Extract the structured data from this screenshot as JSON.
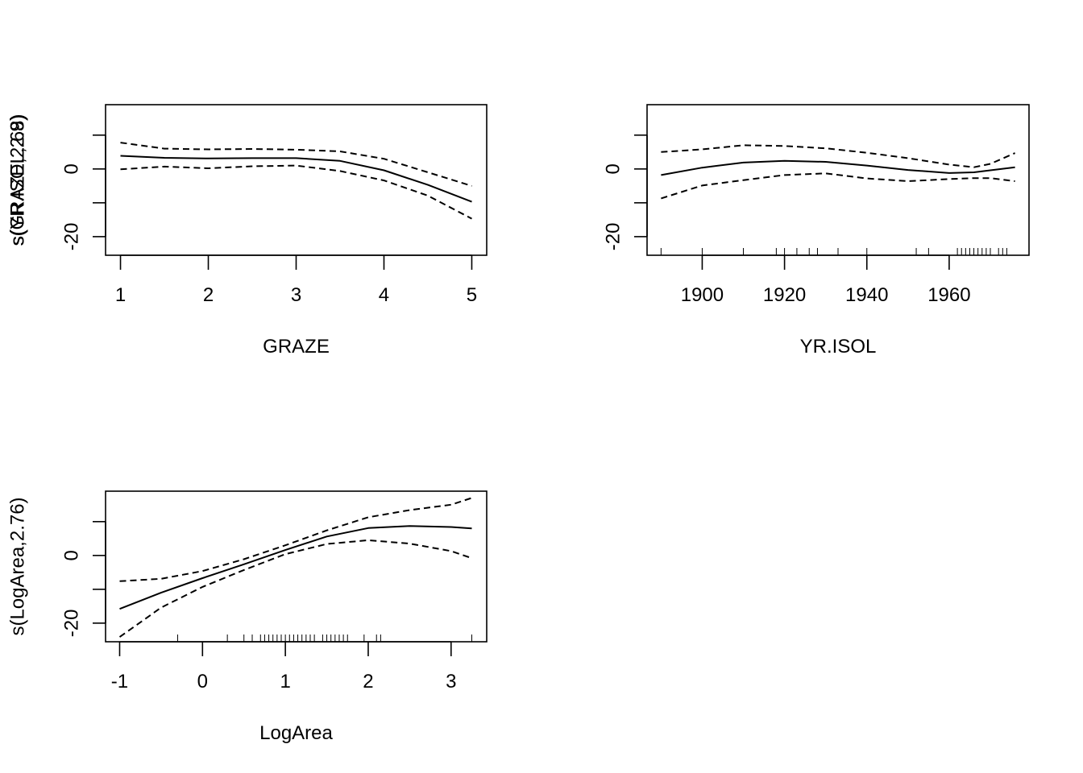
{
  "chart_data": [
    {
      "type": "line",
      "xlabel": "GRAZE",
      "ylabel": "s(GRAZE,2.68)",
      "xlim": [
        0.83,
        5.17
      ],
      "ylim": [
        -25.5,
        19
      ],
      "x_ticks": [
        1,
        2,
        3,
        4,
        5
      ],
      "x_tick_labels": [
        "1",
        "2",
        "3",
        "4",
        "5"
      ],
      "y_ticks": [
        -20,
        -10,
        0,
        10
      ],
      "y_tick_labels": [
        "-20",
        "",
        "0",
        ""
      ],
      "rug": [],
      "series": [
        {
          "role": "fit",
          "style": "solid",
          "x": [
            1,
            1.5,
            2,
            2.5,
            3,
            3.5,
            4,
            4.5,
            5
          ],
          "y": [
            3.9,
            3.3,
            3.1,
            3.2,
            3.2,
            2.4,
            -0.4,
            -4.7,
            -9.7
          ]
        },
        {
          "role": "upper",
          "style": "dashed",
          "x": [
            1,
            1.5,
            2,
            2.5,
            3,
            3.5,
            4,
            4.5,
            5
          ],
          "y": [
            7.8,
            6.0,
            5.8,
            5.9,
            5.7,
            5.2,
            3.0,
            -1.0,
            -5.0
          ]
        },
        {
          "role": "lower",
          "style": "dashed",
          "x": [
            1,
            1.5,
            2,
            2.5,
            3,
            3.5,
            4,
            4.5,
            5
          ],
          "y": [
            -0.1,
            0.7,
            0.2,
            0.8,
            1.0,
            -0.6,
            -3.4,
            -7.9,
            -14.7
          ]
        }
      ]
    },
    {
      "type": "line",
      "xlabel": "YR.ISOL",
      "ylabel": "s(YR.ISOL,2.9)",
      "xlim": [
        1886.6,
        1979.4
      ],
      "ylim": [
        -25.5,
        19
      ],
      "x_ticks": [
        1900,
        1920,
        1940,
        1960
      ],
      "x_tick_labels": [
        "1900",
        "1920",
        "1940",
        "1960"
      ],
      "y_ticks": [
        -20,
        -10,
        0,
        10
      ],
      "y_tick_labels": [
        "-20",
        "",
        "0",
        ""
      ],
      "rug": [
        1890,
        1900,
        1910,
        1918,
        1920,
        1923,
        1926,
        1928,
        1933,
        1940,
        1952,
        1955,
        1962,
        1963,
        1964,
        1965,
        1966,
        1967,
        1968,
        1969,
        1970,
        1972,
        1973,
        1974
      ],
      "series": [
        {
          "role": "fit",
          "style": "solid",
          "x": [
            1890,
            1900,
            1910,
            1920,
            1930,
            1940,
            1950,
            1960,
            1966,
            1970,
            1976
          ],
          "y": [
            -1.8,
            0.4,
            1.9,
            2.4,
            2.1,
            1.0,
            -0.3,
            -1.2,
            -1.0,
            -0.4,
            0.5
          ]
        },
        {
          "role": "upper",
          "style": "dashed",
          "x": [
            1890,
            1900,
            1910,
            1920,
            1930,
            1940,
            1950,
            1960,
            1966,
            1970,
            1976
          ],
          "y": [
            5.0,
            5.8,
            7.0,
            6.8,
            6.1,
            4.8,
            3.2,
            1.3,
            0.5,
            1.5,
            4.7
          ]
        },
        {
          "role": "lower",
          "style": "dashed",
          "x": [
            1890,
            1900,
            1910,
            1920,
            1930,
            1940,
            1950,
            1960,
            1966,
            1970,
            1976
          ],
          "y": [
            -8.7,
            -4.9,
            -3.3,
            -1.8,
            -1.3,
            -2.8,
            -3.6,
            -3.0,
            -2.7,
            -2.7,
            -3.6
          ]
        }
      ]
    },
    {
      "type": "line",
      "xlabel": "LogArea",
      "ylabel": "s(LogArea,2.76)",
      "xlim": [
        -1.17,
        3.43
      ],
      "ylim": [
        -25.5,
        19
      ],
      "x_ticks": [
        -1,
        0,
        1,
        2,
        3
      ],
      "x_tick_labels": [
        "-1",
        "0",
        "1",
        "2",
        "3"
      ],
      "y_ticks": [
        -20,
        -10,
        0,
        10
      ],
      "y_tick_labels": [
        "-20",
        "",
        "0",
        ""
      ],
      "rug": [
        -0.3,
        0.3,
        0.5,
        0.6,
        0.7,
        0.75,
        0.8,
        0.85,
        0.9,
        0.95,
        1.0,
        1.05,
        1.1,
        1.15,
        1.2,
        1.25,
        1.3,
        1.35,
        1.45,
        1.5,
        1.55,
        1.6,
        1.65,
        1.7,
        1.75,
        1.95,
        2.1,
        2.15,
        3.25
      ],
      "series": [
        {
          "role": "fit",
          "style": "solid",
          "x": [
            -1,
            -0.5,
            0,
            0.5,
            1,
            1.5,
            2,
            2.5,
            3,
            3.25
          ],
          "y": [
            -15.8,
            -11.0,
            -6.7,
            -2.6,
            1.6,
            5.6,
            8.1,
            8.7,
            8.4,
            8.0
          ]
        },
        {
          "role": "upper",
          "style": "dashed",
          "x": [
            -1,
            -0.5,
            0,
            0.5,
            1,
            1.5,
            2,
            2.5,
            3,
            3.25
          ],
          "y": [
            -7.6,
            -6.9,
            -4.6,
            -1.1,
            3.0,
            7.4,
            11.3,
            13.4,
            15.0,
            17.0
          ]
        },
        {
          "role": "lower",
          "style": "dashed",
          "x": [
            -1,
            -0.5,
            0,
            0.5,
            1,
            1.5,
            2,
            2.5,
            3,
            3.25
          ],
          "y": [
            -24.1,
            -15.4,
            -9.3,
            -4.3,
            0.4,
            3.4,
            4.5,
            3.5,
            1.3,
            -0.8
          ]
        }
      ]
    }
  ]
}
